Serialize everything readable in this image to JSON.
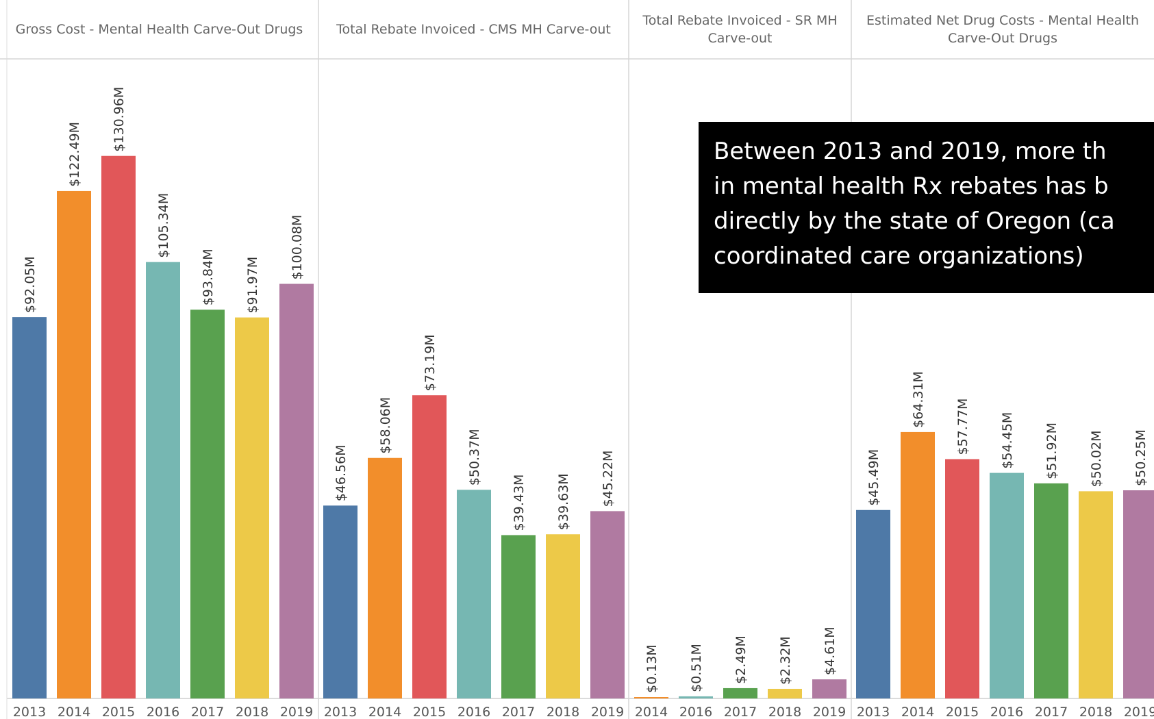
{
  "chart_data": [
    {
      "type": "bar",
      "title": "Gross Cost - Mental Health Carve-Out Drugs",
      "categories": [
        "2013",
        "2014",
        "2015",
        "2016",
        "2017",
        "2018",
        "2019"
      ],
      "values": [
        92.05,
        122.49,
        130.96,
        105.34,
        93.84,
        91.97,
        100.08
      ],
      "labels": [
        "$92.05M",
        "$122.49M",
        "$130.96M",
        "$105.34M",
        "$93.84M",
        "$91.97M",
        "$100.08M"
      ],
      "colors": [
        "#4e79a7",
        "#f28e2b",
        "#e15759",
        "#76b7b2",
        "#59a14f",
        "#edc948",
        "#b07aa1"
      ],
      "ylim": [
        0,
        150
      ]
    },
    {
      "type": "bar",
      "title": "Total Rebate Invoiced - CMS MH Carve-out",
      "categories": [
        "2013",
        "2014",
        "2015",
        "2016",
        "2017",
        "2018",
        "2019"
      ],
      "values": [
        46.56,
        58.06,
        73.19,
        50.37,
        39.43,
        39.63,
        45.22
      ],
      "labels": [
        "$46.56M",
        "$58.06M",
        "$73.19M",
        "$50.37M",
        "$39.43M",
        "$39.63M",
        "$45.22M"
      ],
      "colors": [
        "#4e79a7",
        "#f28e2b",
        "#e15759",
        "#76b7b2",
        "#59a14f",
        "#edc948",
        "#b07aa1"
      ],
      "ylim": [
        0,
        150
      ]
    },
    {
      "type": "bar",
      "title": "Total Rebate Invoiced - SR MH Carve-out",
      "categories": [
        "2014",
        "2016",
        "2017",
        "2018",
        "2019"
      ],
      "values": [
        0.13,
        0.51,
        2.49,
        2.32,
        4.61
      ],
      "labels": [
        "$0.13M",
        "$0.51M",
        "$2.49M",
        "$2.32M",
        "$4.61M"
      ],
      "colors": [
        "#f28e2b",
        "#76b7b2",
        "#59a14f",
        "#edc948",
        "#b07aa1"
      ],
      "ylim": [
        0,
        150
      ]
    },
    {
      "type": "bar",
      "title": "Estimated Net Drug Costs - Mental Health Carve-Out Drugs",
      "categories": [
        "2013",
        "2014",
        "2015",
        "2016",
        "2017",
        "2018",
        "2019"
      ],
      "values": [
        45.49,
        64.31,
        57.77,
        54.45,
        51.92,
        50.02,
        50.25
      ],
      "labels": [
        "$45.49M",
        "$64.31M",
        "$57.77M",
        "$54.45M",
        "$51.92M",
        "$50.02M",
        "$50.25M"
      ],
      "colors": [
        "#4e79a7",
        "#f28e2b",
        "#e15759",
        "#76b7b2",
        "#59a14f",
        "#edc948",
        "#b07aa1"
      ],
      "ylim": [
        0,
        150
      ]
    }
  ],
  "callout": {
    "text": "Between 2013 and 2019, more th\nin mental health Rx rebates has b\ndirectly by the state of Oregon (ca\ncoordinated care organizations)"
  }
}
